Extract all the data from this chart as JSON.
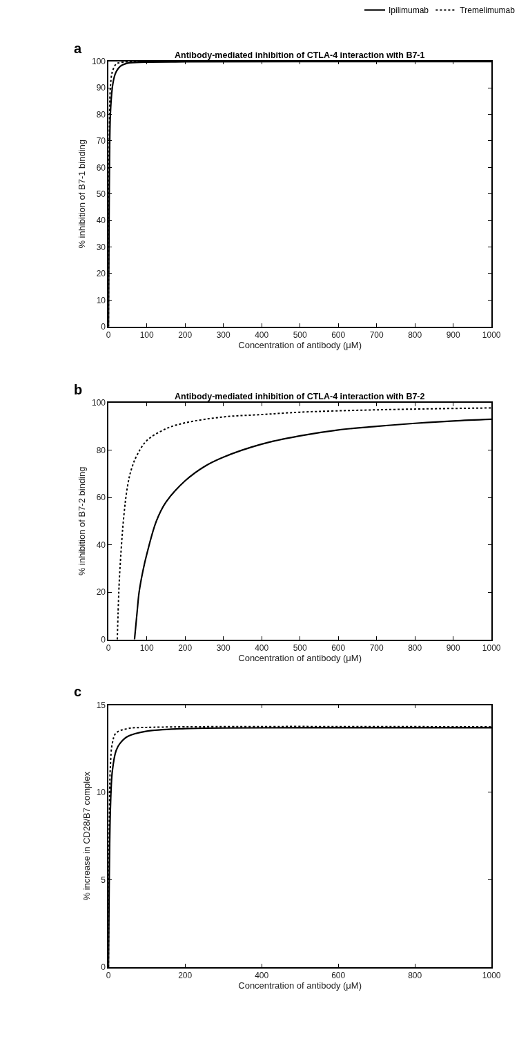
{
  "chart_data": [
    {
      "type": "line",
      "title": "Antibody-mediated inhibition of CTLA-4 interaction with B7-1",
      "xlabel": "Concentration of antibody (μM)",
      "ylabel": "% inhibition of B7-1 binding",
      "annotations": [
        "a"
      ],
      "xlim": [
        0,
        1000
      ],
      "ylim": [
        0,
        100
      ],
      "xticks": [
        0,
        100,
        200,
        300,
        400,
        500,
        600,
        700,
        800,
        900,
        1000
      ],
      "yticks": [
        0,
        10,
        20,
        30,
        40,
        50,
        60,
        70,
        80,
        90,
        100
      ],
      "legend": "top right",
      "marker": "none",
      "series": [
        {
          "name": "Ipilimumab",
          "color": "#000000",
          "line_style": "solid",
          "x": [
            0,
            2,
            5,
            10,
            15,
            20,
            30,
            50,
            100,
            200,
            500,
            1000
          ],
          "values": [
            0,
            50,
            80,
            90,
            94,
            96,
            98,
            99.3,
            99.7,
            99.8,
            99.9,
            99.9
          ]
        },
        {
          "name": "Tremelimumab",
          "color": "#000000",
          "line_style": "dotted",
          "x": [
            0,
            2,
            5,
            10,
            20,
            30,
            50,
            100,
            200,
            500,
            1000
          ],
          "values": [
            0,
            70,
            90,
            96,
            99,
            99.5,
            99.8,
            99.9,
            100,
            100,
            100
          ]
        }
      ]
    },
    {
      "type": "line",
      "title": "Antibody-mediated inhibition of CTLA-4 interaction with B7-2",
      "xlabel": "Concentration of antibody (μM)",
      "ylabel": "% inhibition of B7-2 binding",
      "annotations": [
        "b"
      ],
      "xlim": [
        0,
        1000
      ],
      "ylim": [
        0,
        100
      ],
      "xticks": [
        0,
        100,
        200,
        300,
        400,
        500,
        600,
        700,
        800,
        900,
        1000
      ],
      "yticks": [
        0,
        20,
        40,
        60,
        80,
        100
      ],
      "marker": "none",
      "series": [
        {
          "color": "#000000",
          "line_style": "solid",
          "x": [
            68,
            75,
            80,
            90,
            100,
            125,
            150,
            200,
            250,
            300,
            400,
            500,
            600,
            700,
            800,
            900,
            1000
          ],
          "values": [
            0,
            12,
            20,
            29,
            36,
            50,
            58,
            67,
            73,
            77,
            82.5,
            86,
            88.5,
            90,
            91.3,
            92.3,
            93
          ]
        },
        {
          "color": "#000000",
          "line_style": "dotted",
          "x": [
            23,
            27,
            30,
            40,
            50,
            60,
            75,
            100,
            150,
            200,
            300,
            400,
            500,
            700,
            1000
          ],
          "values": [
            0,
            20,
            30,
            52,
            65,
            72,
            78,
            84,
            89,
            91.5,
            94,
            95,
            96,
            97,
            97.8
          ]
        }
      ]
    },
    {
      "type": "line",
      "xlabel": "Concentration of antibody (μM)",
      "ylabel": "% increase in CD28/B7 complex",
      "annotations": [
        "c"
      ],
      "xlim": [
        0,
        1000
      ],
      "ylim": [
        0,
        15
      ],
      "xticks": [
        0,
        200,
        400,
        600,
        800,
        1000
      ],
      "yticks": [
        0,
        5,
        10,
        15
      ],
      "marker": "none",
      "series": [
        {
          "color": "#000000",
          "line_style": "solid",
          "x": [
            0,
            2,
            5,
            10,
            20,
            30,
            50,
            100,
            200,
            500,
            1000
          ],
          "values": [
            0,
            5,
            9,
            11.2,
            12.4,
            12.8,
            13.2,
            13.5,
            13.65,
            13.7,
            13.7
          ]
        },
        {
          "color": "#000000",
          "line_style": "dotted",
          "x": [
            0,
            2,
            5,
            10,
            20,
            50,
            100,
            1000
          ],
          "values": [
            0,
            8,
            11.5,
            12.8,
            13.4,
            13.65,
            13.72,
            13.75
          ]
        }
      ]
    }
  ]
}
